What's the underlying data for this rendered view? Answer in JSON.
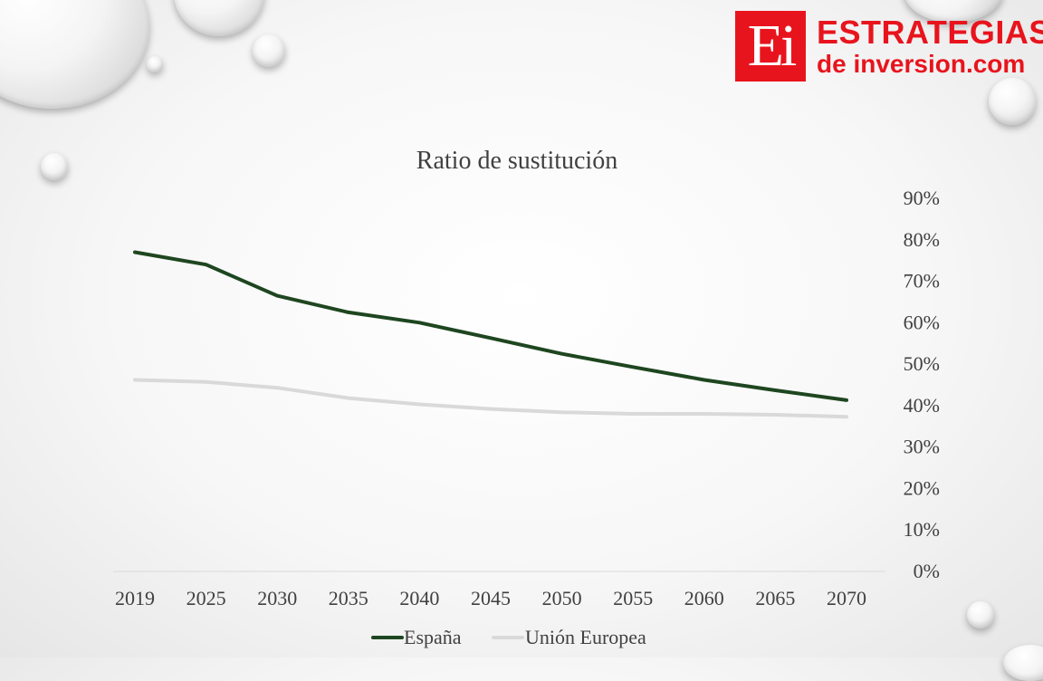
{
  "logo": {
    "mark": "Ei",
    "line1": "ESTRATEGIAS",
    "line2": "de inversion.com",
    "color": "#e8141d"
  },
  "chart_data": {
    "type": "line",
    "title": "Ratio de sustitución",
    "categories": [
      "2019",
      "2025",
      "2030",
      "2035",
      "2040",
      "2045",
      "2050",
      "2055",
      "2060",
      "2065",
      "2070"
    ],
    "series": [
      {
        "name": "España",
        "color": "#1e4620",
        "values": [
          77,
          74,
          66.5,
          62.5,
          60,
          56.3,
          52.5,
          49.3,
          46.2,
          43.7,
          41.3
        ]
      },
      {
        "name": "Unión Europea",
        "color": "#d9d9d9",
        "values": [
          46.2,
          45.7,
          44.3,
          41.8,
          40.3,
          39.2,
          38.4,
          38.0,
          38.0,
          37.8,
          37.3
        ]
      }
    ],
    "yticks": [
      "0%",
      "10%",
      "20%",
      "30%",
      "40%",
      "50%",
      "60%",
      "70%",
      "80%",
      "90%"
    ],
    "ylim": [
      0,
      90
    ],
    "axis_position": "right",
    "legend_position": "bottom",
    "grid": false
  }
}
